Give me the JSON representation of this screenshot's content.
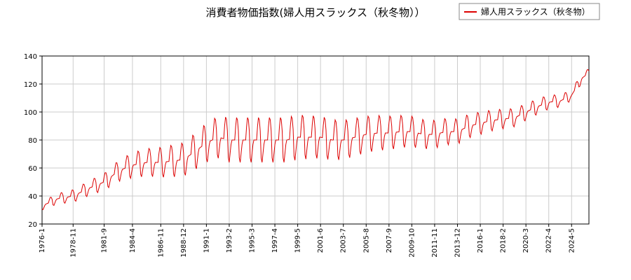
{
  "chart_data": {
    "type": "line",
    "title": "消費者物価指数(婦人用スラックス（秋冬物））",
    "xlabel": "",
    "ylabel": "",
    "ylim": [
      20,
      140
    ],
    "yticks": [
      20,
      40,
      60,
      80,
      100,
      120,
      140
    ],
    "xlim": [
      "1976-01",
      "2025-12"
    ],
    "xticks": [
      "1976-1",
      "1978-11",
      "1981-9",
      "1984-4",
      "1986-11",
      "1988-12",
      "1991-1",
      "1993-2",
      "1995-3",
      "1997-4",
      "1999-5",
      "2001-6",
      "2003-7",
      "2005-8",
      "2007-9",
      "2009-10",
      "2011-11",
      "2013-12",
      "2016-1",
      "2018-2",
      "2020-3",
      "2022-4",
      "2024-5"
    ],
    "grid": true,
    "legend_position": "top-right",
    "series": [
      {
        "name": "婦人用スラックス（秋冬物）",
        "color": "#dd0000",
        "frequency": "monthly",
        "start": "1976-01",
        "description_points": [
          [
            "1976-01",
            33
          ],
          [
            "1977-06",
            38
          ],
          [
            "1978-11",
            40
          ],
          [
            "1980-06",
            46
          ],
          [
            "1981-09",
            50
          ],
          [
            "1983-01",
            58
          ],
          [
            "1984-04",
            62
          ],
          [
            "1985-08",
            64
          ],
          [
            "1986-11",
            64
          ],
          [
            "1987-12",
            65
          ],
          [
            "1988-12",
            66
          ],
          [
            "1990-01",
            72
          ],
          [
            "1991-01",
            78
          ],
          [
            "1992-02",
            82
          ],
          [
            "1993-02",
            80
          ],
          [
            "1994-03",
            80
          ],
          [
            "1995-03",
            80
          ],
          [
            "1996-03",
            80
          ],
          [
            "1997-04",
            80
          ],
          [
            "1998-05",
            80
          ],
          [
            "1999-05",
            82
          ],
          [
            "2000-06",
            82
          ],
          [
            "2001-06",
            82
          ],
          [
            "2002-07",
            80
          ],
          [
            "2003-07",
            80
          ],
          [
            "2004-08",
            82
          ],
          [
            "2005-08",
            84
          ],
          [
            "2006-09",
            85
          ],
          [
            "2007-09",
            85
          ],
          [
            "2008-10",
            86
          ],
          [
            "2009-10",
            86
          ],
          [
            "2010-11",
            84
          ],
          [
            "2011-11",
            84
          ],
          [
            "2012-12",
            86
          ],
          [
            "2013-12",
            86
          ],
          [
            "2015-01",
            90
          ],
          [
            "2016-01",
            92
          ],
          [
            "2017-02",
            94
          ],
          [
            "2018-02",
            95
          ],
          [
            "2019-03",
            96
          ],
          [
            "2020-03",
            100
          ],
          [
            "2021-04",
            104
          ],
          [
            "2022-04",
            107
          ],
          [
            "2023-05",
            108
          ],
          [
            "2024-05",
            112
          ],
          [
            "2025-04",
            124
          ],
          [
            "2025-12",
            128
          ]
        ],
        "seasonal_amplitude": [
          [
            "1976-01",
            3
          ],
          [
            "1981-09",
            6
          ],
          [
            "1984-04",
            9
          ],
          [
            "1988-12",
            12
          ],
          [
            "1993-02",
            16
          ],
          [
            "1999-05",
            16
          ],
          [
            "2005-08",
            13
          ],
          [
            "2009-10",
            11
          ],
          [
            "2013-12",
            9
          ],
          [
            "2018-02",
            7
          ],
          [
            "2022-04",
            5
          ],
          [
            "2025-12",
            3
          ]
        ]
      }
    ]
  }
}
